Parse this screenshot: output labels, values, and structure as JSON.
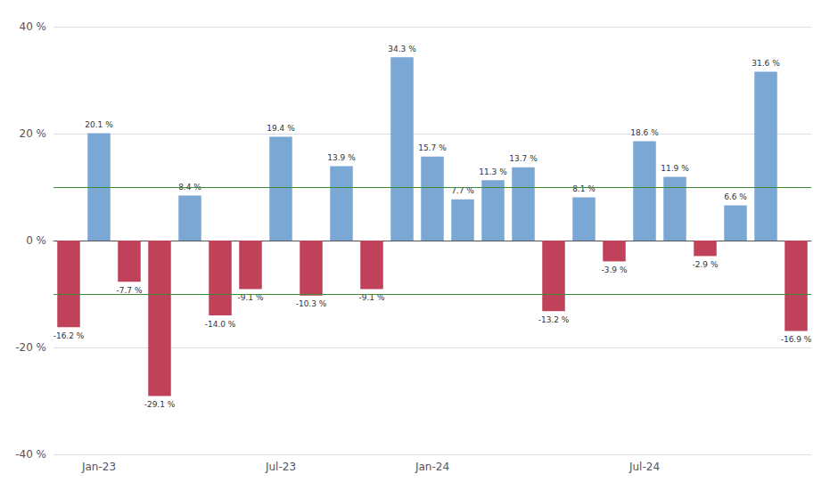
{
  "chart_data": {
    "type": "bar",
    "categories": [
      null,
      "Jan-23",
      null,
      null,
      null,
      null,
      null,
      "Jul-23",
      null,
      null,
      null,
      null,
      "Jan-24",
      null,
      null,
      null,
      null,
      null,
      null,
      "Jul-24",
      null,
      null,
      null,
      null,
      null
    ],
    "values": [
      -16.2,
      20.1,
      -7.7,
      -29.1,
      8.4,
      -14.0,
      -9.1,
      19.4,
      -10.3,
      13.9,
      -9.1,
      34.3,
      15.7,
      7.7,
      11.3,
      13.7,
      -13.2,
      8.1,
      -3.9,
      18.6,
      11.9,
      -2.9,
      6.6,
      31.6,
      -16.9
    ],
    "value_labels": [
      "-16.2 %",
      "20.1 %",
      "-7.7 %",
      "-29.1 %",
      "8.4 %",
      "-14.0 %",
      "-9.1 %",
      "19.4 %",
      "-10.3 %",
      "13.9 %",
      "-9.1 %",
      "34.3 %",
      "15.7 %",
      "7.7 %",
      "11.3 %",
      "13.7 %",
      "-13.2 %",
      "8.1 %",
      "-3.9 %",
      "18.6 %",
      "11.9 %",
      "-2.9 %",
      "6.6 %",
      "31.6 %",
      "-16.9 %"
    ],
    "colors": [
      "#C0415A",
      "#7BA7D4",
      "#C0415A",
      "#C0415A",
      "#7BA7D4",
      "#C0415A",
      "#C0415A",
      "#7BA7D4",
      "#C0415A",
      "#7BA7D4",
      "#C0415A",
      "#7BA7D4",
      "#7BA7D4",
      "#7BA7D4",
      "#7BA7D4",
      "#7BA7D4",
      "#C0415A",
      "#7BA7D4",
      "#C0415A",
      "#7BA7D4",
      "#7BA7D4",
      "#C0415A",
      "#7BA7D4",
      "#7BA7D4",
      "#C0415A"
    ],
    "ylim": [
      -40,
      40
    ],
    "yticks": [
      {
        "value": -40,
        "label": "-40 %"
      },
      {
        "value": -20,
        "label": "-20 %"
      },
      {
        "value": 0,
        "label": "0 %"
      },
      {
        "value": 20,
        "label": "20 %"
      },
      {
        "value": 40,
        "label": "40 %"
      }
    ],
    "reference_lines": {
      "values": [
        10,
        -10
      ],
      "color": "#3A8A3A"
    },
    "grid": true,
    "data_labels": true
  }
}
